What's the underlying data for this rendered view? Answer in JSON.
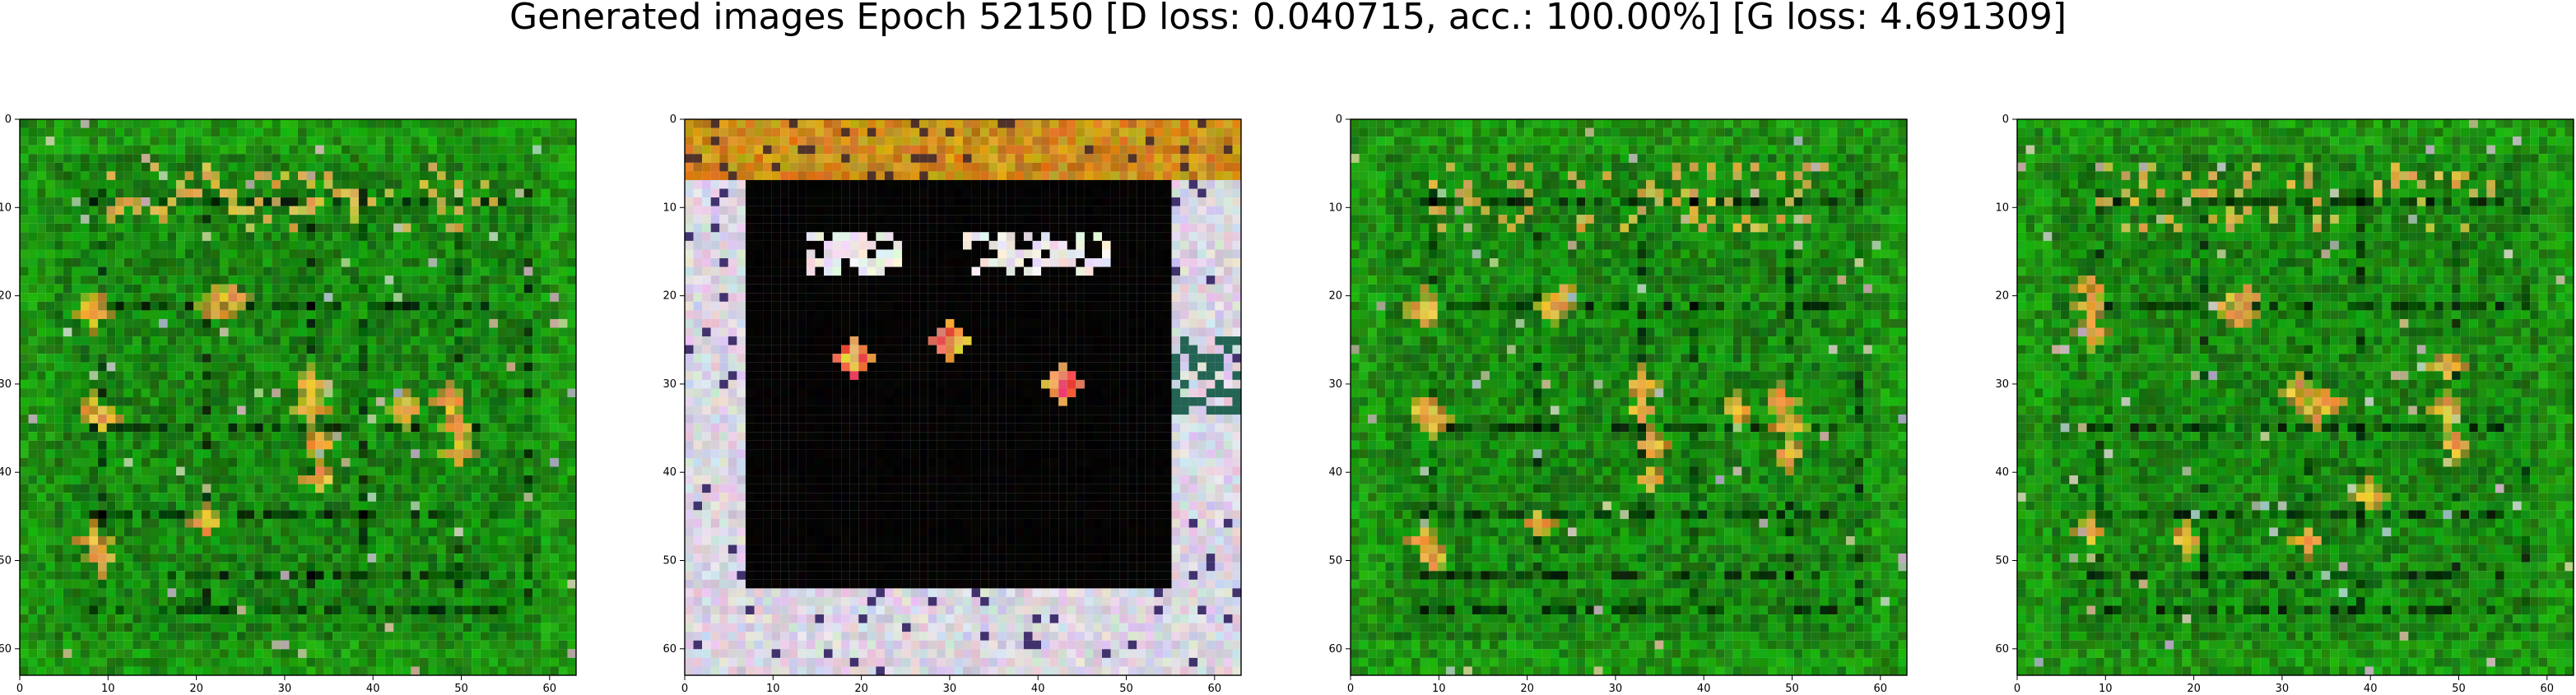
{
  "figure": {
    "title": "Generated images Epoch 52150 [D loss: 0.040715, acc.: 100.00%] [G loss: 4.691309]"
  },
  "chart_data": [
    {
      "type": "image",
      "xlim": [
        0,
        63
      ],
      "ylim": [
        63,
        0
      ],
      "xticks": [
        0,
        10,
        20,
        30,
        40,
        50,
        60
      ],
      "yticks": [
        0,
        10,
        20,
        30,
        40,
        50,
        60
      ],
      "dominant_colors": [
        "#1f8a12",
        "#2f9d1c",
        "#cfa64a"
      ],
      "image_description": "green noisy generated grid pattern"
    },
    {
      "type": "image",
      "xlim": [
        0,
        63
      ],
      "ylim": [
        63,
        0
      ],
      "xticks": [
        0,
        10,
        20,
        30,
        40,
        50,
        60
      ],
      "yticks": [
        0,
        10,
        20,
        30,
        40,
        50,
        60
      ],
      "dominant_colors": [
        "#000000",
        "#d7d2dc",
        "#c8932d",
        "#d84a3a"
      ],
      "image_description": "black center with white border and orange top band"
    },
    {
      "type": "image",
      "xlim": [
        0,
        63
      ],
      "ylim": [
        63,
        0
      ],
      "xticks": [
        0,
        10,
        20,
        30,
        40,
        50,
        60
      ],
      "yticks": [
        0,
        10,
        20,
        30,
        40,
        50,
        60
      ],
      "dominant_colors": [
        "#1f8a12",
        "#2f9d1c",
        "#cfa64a"
      ],
      "image_description": "green noisy generated grid pattern"
    },
    {
      "type": "image",
      "xlim": [
        0,
        63
      ],
      "ylim": [
        63,
        0
      ],
      "xticks": [
        0,
        10,
        20,
        30,
        40,
        50,
        60
      ],
      "yticks": [
        0,
        10,
        20,
        30,
        40,
        50,
        60
      ],
      "dominant_colors": [
        "#187b0f",
        "#2d9a1b",
        "#d29a43"
      ],
      "image_description": "dense green noisy generated pattern"
    }
  ]
}
